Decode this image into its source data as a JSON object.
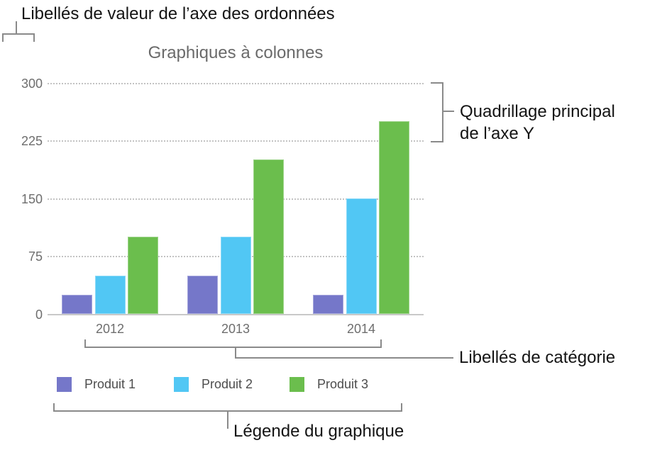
{
  "figure": {
    "background": "#ffffff",
    "bracket_color": "#8a8a8a"
  },
  "annotations": {
    "y_value_labels": "Libellés de valeur de l’axe des ordonnées",
    "y_grid_line1": "Quadrillage principal",
    "y_grid_line2": "de l’axe Y",
    "category_labels": "Libellés de catégorie",
    "legend": "Légende du graphique"
  },
  "chart_data": {
    "type": "bar",
    "title": "Graphiques à colonnes",
    "categories": [
      "2012",
      "2013",
      "2014"
    ],
    "series": [
      {
        "name": "Produit 1",
        "color": "#7577c9",
        "values": [
          25,
          50,
          25
        ]
      },
      {
        "name": "Produit 2",
        "color": "#51c7f4",
        "values": [
          50,
          100,
          150
        ]
      },
      {
        "name": "Produit 3",
        "color": "#6bbe4d",
        "values": [
          100,
          200,
          250
        ]
      }
    ],
    "y_ticks": [
      300,
      225,
      150,
      75,
      0
    ],
    "ylim": [
      0,
      300
    ],
    "xlabel": "",
    "ylabel": "",
    "grid": "horizontal-dotted",
    "legend_position": "bottom",
    "title_color": "#6a6a6a",
    "axis_label_color": "#6e6e6e",
    "legend_text_color": "#4d4d4d"
  }
}
